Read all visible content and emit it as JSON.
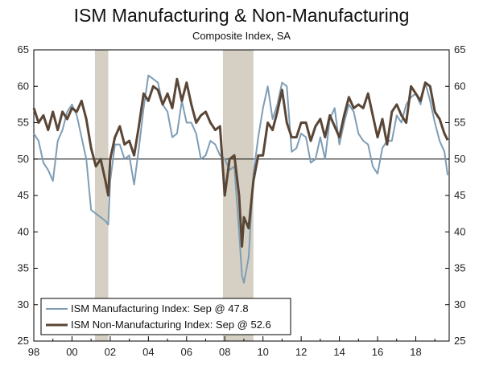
{
  "chart_data": {
    "type": "line",
    "title": "ISM Manufacturing & Non-Manufacturing",
    "subtitle": "Composite Index, SA",
    "xlabel": "",
    "ylabel": "",
    "ylim": [
      25,
      65
    ],
    "xlim": [
      1998.0,
      2019.75
    ],
    "yticks": [
      25,
      30,
      35,
      40,
      45,
      50,
      55,
      60,
      65
    ],
    "xtick_labels": [
      {
        "x": 1998,
        "label": "98"
      },
      {
        "x": 2000,
        "label": "00"
      },
      {
        "x": 2002,
        "label": "02"
      },
      {
        "x": 2004,
        "label": "04"
      },
      {
        "x": 2006,
        "label": "06"
      },
      {
        "x": 2008,
        "label": "08"
      },
      {
        "x": 2010,
        "label": "10"
      },
      {
        "x": 2012,
        "label": "12"
      },
      {
        "x": 2014,
        "label": "14"
      },
      {
        "x": 2016,
        "label": "16"
      },
      {
        "x": 2018,
        "label": "18"
      }
    ],
    "reference_line": 50,
    "recessions": [
      [
        2001.2,
        2001.9
      ],
      [
        2007.9,
        2009.5
      ]
    ],
    "series": [
      {
        "name": "ISM Manufacturing Index: Sep @ 47.8",
        "color": "#7f9db5",
        "points": [
          [
            1998.0,
            53.5
          ],
          [
            1998.25,
            52.5
          ],
          [
            1998.5,
            49.5
          ],
          [
            1998.75,
            48.5
          ],
          [
            1999.0,
            47.0
          ],
          [
            1999.25,
            52.5
          ],
          [
            1999.5,
            54.0
          ],
          [
            1999.75,
            56.5
          ],
          [
            2000.0,
            57.5
          ],
          [
            2000.25,
            56.0
          ],
          [
            2000.5,
            53.0
          ],
          [
            2000.75,
            50.0
          ],
          [
            2001.0,
            43.0
          ],
          [
            2001.25,
            42.5
          ],
          [
            2001.5,
            42.0
          ],
          [
            2001.75,
            41.5
          ],
          [
            2001.9,
            41.0
          ],
          [
            2002.0,
            47.0
          ],
          [
            2002.25,
            52.0
          ],
          [
            2002.5,
            52.0
          ],
          [
            2002.75,
            50.0
          ],
          [
            2003.0,
            50.5
          ],
          [
            2003.25,
            46.5
          ],
          [
            2003.5,
            51.5
          ],
          [
            2003.75,
            57.0
          ],
          [
            2004.0,
            61.5
          ],
          [
            2004.25,
            61.0
          ],
          [
            2004.5,
            60.5
          ],
          [
            2004.75,
            57.5
          ],
          [
            2005.0,
            56.5
          ],
          [
            2005.25,
            53.0
          ],
          [
            2005.5,
            53.5
          ],
          [
            2005.75,
            58.0
          ],
          [
            2006.0,
            55.0
          ],
          [
            2006.25,
            55.0
          ],
          [
            2006.5,
            53.5
          ],
          [
            2006.75,
            50.0
          ],
          [
            2007.0,
            50.5
          ],
          [
            2007.25,
            52.5
          ],
          [
            2007.5,
            52.0
          ],
          [
            2007.75,
            50.5
          ],
          [
            2008.0,
            50.0
          ],
          [
            2008.25,
            48.5
          ],
          [
            2008.5,
            49.0
          ],
          [
            2008.75,
            40.0
          ],
          [
            2008.9,
            34.0
          ],
          [
            2009.0,
            33.0
          ],
          [
            2009.25,
            36.5
          ],
          [
            2009.5,
            48.0
          ],
          [
            2009.75,
            53.0
          ],
          [
            2010.0,
            57.0
          ],
          [
            2010.25,
            60.0
          ],
          [
            2010.5,
            55.5
          ],
          [
            2010.75,
            57.5
          ],
          [
            2011.0,
            60.5
          ],
          [
            2011.25,
            60.0
          ],
          [
            2011.5,
            51.0
          ],
          [
            2011.75,
            51.5
          ],
          [
            2012.0,
            53.5
          ],
          [
            2012.25,
            53.0
          ],
          [
            2012.5,
            49.5
          ],
          [
            2012.75,
            50.0
          ],
          [
            2013.0,
            53.0
          ],
          [
            2013.25,
            50.0
          ],
          [
            2013.5,
            55.5
          ],
          [
            2013.75,
            57.0
          ],
          [
            2014.0,
            52.0
          ],
          [
            2014.25,
            55.0
          ],
          [
            2014.5,
            57.5
          ],
          [
            2014.75,
            56.5
          ],
          [
            2015.0,
            53.5
          ],
          [
            2015.25,
            52.5
          ],
          [
            2015.5,
            52.0
          ],
          [
            2015.75,
            49.0
          ],
          [
            2016.0,
            48.0
          ],
          [
            2016.25,
            51.5
          ],
          [
            2016.5,
            52.5
          ],
          [
            2016.75,
            52.5
          ],
          [
            2017.0,
            56.0
          ],
          [
            2017.25,
            55.0
          ],
          [
            2017.5,
            57.5
          ],
          [
            2017.75,
            58.5
          ],
          [
            2018.0,
            59.0
          ],
          [
            2018.25,
            57.5
          ],
          [
            2018.5,
            60.5
          ],
          [
            2018.75,
            58.0
          ],
          [
            2019.0,
            55.0
          ],
          [
            2019.25,
            52.5
          ],
          [
            2019.5,
            51.0
          ],
          [
            2019.67,
            47.8
          ]
        ]
      },
      {
        "name": "ISM Non-Manufacturing Index: Sep @ 52.6",
        "color": "#5a4636",
        "points": [
          [
            1998.0,
            57.0
          ],
          [
            1998.25,
            55.0
          ],
          [
            1998.5,
            56.0
          ],
          [
            1998.75,
            54.0
          ],
          [
            1999.0,
            56.5
          ],
          [
            1999.25,
            54.0
          ],
          [
            1999.5,
            56.5
          ],
          [
            1999.75,
            55.5
          ],
          [
            2000.0,
            57.0
          ],
          [
            2000.25,
            56.5
          ],
          [
            2000.5,
            58.0
          ],
          [
            2000.75,
            55.5
          ],
          [
            2001.0,
            51.5
          ],
          [
            2001.25,
            49.0
          ],
          [
            2001.5,
            50.0
          ],
          [
            2001.75,
            47.0
          ],
          [
            2001.9,
            45.0
          ],
          [
            2002.0,
            50.0
          ],
          [
            2002.25,
            53.0
          ],
          [
            2002.5,
            54.5
          ],
          [
            2002.75,
            52.0
          ],
          [
            2003.0,
            52.5
          ],
          [
            2003.25,
            50.5
          ],
          [
            2003.5,
            54.5
          ],
          [
            2003.75,
            59.0
          ],
          [
            2004.0,
            58.0
          ],
          [
            2004.25,
            60.0
          ],
          [
            2004.5,
            59.5
          ],
          [
            2004.75,
            57.5
          ],
          [
            2005.0,
            59.0
          ],
          [
            2005.25,
            57.0
          ],
          [
            2005.5,
            61.0
          ],
          [
            2005.75,
            58.0
          ],
          [
            2006.0,
            60.5
          ],
          [
            2006.25,
            57.5
          ],
          [
            2006.5,
            55.0
          ],
          [
            2006.75,
            56.0
          ],
          [
            2007.0,
            56.5
          ],
          [
            2007.25,
            55.0
          ],
          [
            2007.5,
            54.0
          ],
          [
            2007.75,
            54.5
          ],
          [
            2008.0,
            45.0
          ],
          [
            2008.25,
            50.0
          ],
          [
            2008.5,
            50.5
          ],
          [
            2008.75,
            45.0
          ],
          [
            2008.9,
            38.0
          ],
          [
            2009.0,
            42.0
          ],
          [
            2009.25,
            40.5
          ],
          [
            2009.5,
            47.0
          ],
          [
            2009.75,
            50.5
          ],
          [
            2010.0,
            50.5
          ],
          [
            2010.25,
            55.0
          ],
          [
            2010.5,
            54.0
          ],
          [
            2010.75,
            56.5
          ],
          [
            2011.0,
            59.5
          ],
          [
            2011.25,
            55.0
          ],
          [
            2011.5,
            53.0
          ],
          [
            2011.75,
            53.0
          ],
          [
            2012.0,
            55.0
          ],
          [
            2012.25,
            55.0
          ],
          [
            2012.5,
            52.5
          ],
          [
            2012.75,
            54.5
          ],
          [
            2013.0,
            55.5
          ],
          [
            2013.25,
            53.0
          ],
          [
            2013.5,
            56.0
          ],
          [
            2013.75,
            54.5
          ],
          [
            2014.0,
            53.0
          ],
          [
            2014.25,
            56.0
          ],
          [
            2014.5,
            58.5
          ],
          [
            2014.75,
            57.0
          ],
          [
            2015.0,
            57.5
          ],
          [
            2015.25,
            57.0
          ],
          [
            2015.5,
            59.0
          ],
          [
            2015.75,
            56.0
          ],
          [
            2016.0,
            53.0
          ],
          [
            2016.25,
            55.5
          ],
          [
            2016.5,
            52.0
          ],
          [
            2016.75,
            56.5
          ],
          [
            2017.0,
            57.5
          ],
          [
            2017.25,
            56.0
          ],
          [
            2017.5,
            55.0
          ],
          [
            2017.75,
            60.0
          ],
          [
            2018.0,
            59.0
          ],
          [
            2018.25,
            58.0
          ],
          [
            2018.5,
            60.5
          ],
          [
            2018.75,
            60.0
          ],
          [
            2019.0,
            56.5
          ],
          [
            2019.25,
            55.5
          ],
          [
            2019.5,
            53.5
          ],
          [
            2019.67,
            52.6
          ]
        ]
      }
    ],
    "legend_position": "bottom-left"
  }
}
